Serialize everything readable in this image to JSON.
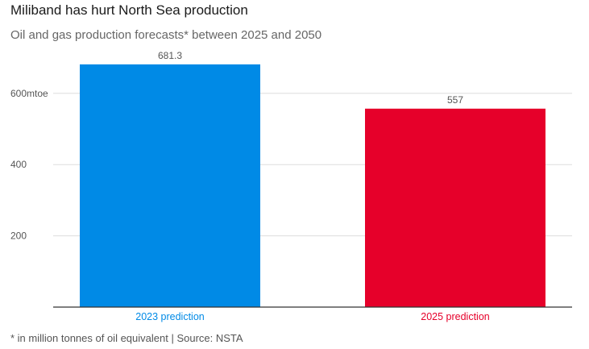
{
  "header": {
    "title": "Miliband has hurt North Sea production",
    "subtitle": "Oil and gas production forecasts* between 2025 and 2050"
  },
  "footer": {
    "note": "* in million tonnes of oil equivalent | Source: NSTA"
  },
  "chart_data": {
    "type": "bar",
    "title": "Miliband has hurt North Sea production",
    "subtitle": "Oil and gas production forecasts* between 2025 and 2050",
    "categories": [
      "2023 prediction",
      "2025 prediction"
    ],
    "values": [
      681.3,
      557
    ],
    "value_labels": [
      "681.3",
      "557"
    ],
    "colors": [
      "#008ae6",
      "#e6002a"
    ],
    "yticks": [
      200,
      400,
      600
    ],
    "ytick_labels": [
      "200",
      "400",
      "600mtoe"
    ],
    "ylim": [
      0,
      700
    ],
    "xlabel": "",
    "ylabel": "",
    "grid": true
  }
}
